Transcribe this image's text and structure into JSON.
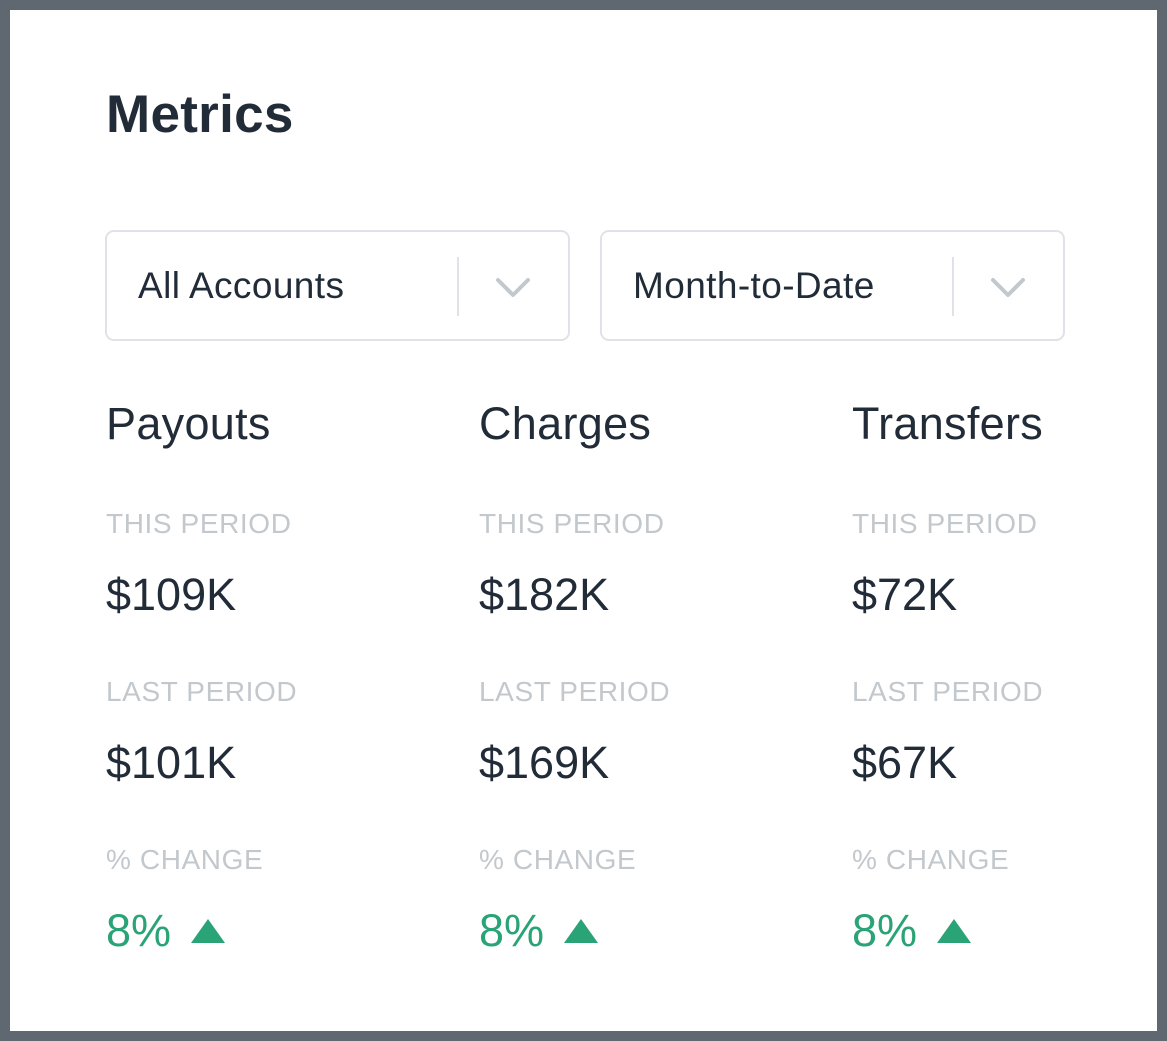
{
  "title": "Metrics",
  "filters": {
    "accounts": {
      "value": "All Accounts"
    },
    "period": {
      "value": "Month-to-Date"
    }
  },
  "labels": {
    "this_period": "THIS PERIOD",
    "last_period": "LAST PERIOD",
    "change": "% CHANGE"
  },
  "metrics": [
    {
      "name": "Payouts",
      "this_period": "$109K",
      "last_period": "$101K",
      "change": "8%",
      "trend": "up"
    },
    {
      "name": "Charges",
      "this_period": "$182K",
      "last_period": "$169K",
      "change": "8%",
      "trend": "up"
    },
    {
      "name": "Transfers",
      "this_period": "$72K",
      "last_period": "$67K",
      "change": "8%",
      "trend": "up"
    }
  ],
  "colors": {
    "positive": "#2aa477",
    "text": "#222c38",
    "muted": "#c3c8cd",
    "border": "#dfe3e8",
    "frame": "#5f6870"
  }
}
